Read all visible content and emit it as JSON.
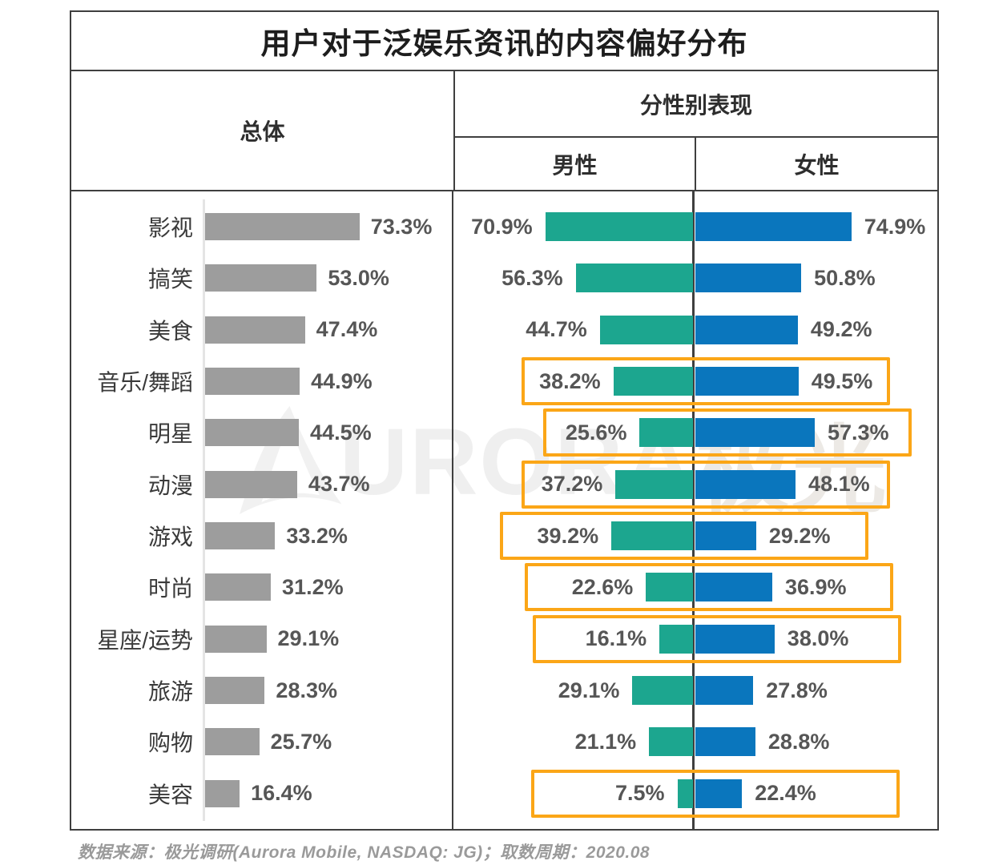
{
  "title": "用户对于泛娱乐资讯的内容偏好分布",
  "columns": {
    "overall": "总体",
    "by_gender": "分性别表现",
    "male": "男性",
    "female": "女性"
  },
  "footer": "数据来源：极光调研(Aurora Mobile, NASDAQ: JG)；取数周期：2020.08",
  "watermark": {
    "logo": "aurora-swoosh-logo",
    "brand_latin": "URORA",
    "brand_cjk": "极光"
  },
  "colors": {
    "overall_bar": "#9d9d9d",
    "male_bar": "#1ca68f",
    "female_bar": "#0a76bd",
    "highlight_box": "#fba617",
    "table_border": "#3f3f3f",
    "value_text": "#565656"
  },
  "chart_data": {
    "type": "bar",
    "orientation": "horizontal",
    "unit": "%",
    "title": "用户对于泛娱乐资讯的内容偏好分布",
    "categories": [
      "影视",
      "搞笑",
      "美食",
      "音乐/舞蹈",
      "明星",
      "动漫",
      "游戏",
      "时尚",
      "星座/运势",
      "旅游",
      "购物",
      "美容"
    ],
    "series": [
      {
        "name": "总体",
        "values": [
          73.3,
          53.0,
          47.4,
          44.9,
          44.5,
          43.7,
          33.2,
          31.2,
          29.1,
          28.3,
          25.7,
          16.4
        ]
      },
      {
        "name": "男性",
        "values": [
          70.9,
          56.3,
          44.7,
          38.2,
          25.6,
          37.2,
          39.2,
          22.6,
          16.1,
          29.1,
          21.1,
          7.5
        ]
      },
      {
        "name": "女性",
        "values": [
          74.9,
          50.8,
          49.2,
          49.5,
          57.3,
          48.1,
          29.2,
          36.9,
          38.0,
          27.8,
          28.8,
          22.4
        ]
      }
    ],
    "highlighted_categories": [
      "音乐/舞蹈",
      "明星",
      "动漫",
      "游戏",
      "时尚",
      "星座/运势",
      "美容"
    ],
    "xlim_overall": [
      0,
      100
    ],
    "xlim_gender": [
      0,
      100
    ],
    "legend_position": "column-headers",
    "grid": false,
    "rows": [
      {
        "label": "影视",
        "overall": 73.3,
        "male": 70.9,
        "female": 74.9,
        "overall_label": "73.3%",
        "male_label": "70.9%",
        "female_label": "74.9%",
        "highlight": false
      },
      {
        "label": "搞笑",
        "overall": 53.0,
        "male": 56.3,
        "female": 50.8,
        "overall_label": "53.0%",
        "male_label": "56.3%",
        "female_label": "50.8%",
        "highlight": false
      },
      {
        "label": "美食",
        "overall": 47.4,
        "male": 44.7,
        "female": 49.2,
        "overall_label": "47.4%",
        "male_label": "44.7%",
        "female_label": "49.2%",
        "highlight": false
      },
      {
        "label": "音乐/舞蹈",
        "overall": 44.9,
        "male": 38.2,
        "female": 49.5,
        "overall_label": "44.9%",
        "male_label": "38.2%",
        "female_label": "49.5%",
        "highlight": true
      },
      {
        "label": "明星",
        "overall": 44.5,
        "male": 25.6,
        "female": 57.3,
        "overall_label": "44.5%",
        "male_label": "25.6%",
        "female_label": "57.3%",
        "highlight": true
      },
      {
        "label": "动漫",
        "overall": 43.7,
        "male": 37.2,
        "female": 48.1,
        "overall_label": "43.7%",
        "male_label": "37.2%",
        "female_label": "48.1%",
        "highlight": true
      },
      {
        "label": "游戏",
        "overall": 33.2,
        "male": 39.2,
        "female": 29.2,
        "overall_label": "33.2%",
        "male_label": "39.2%",
        "female_label": "29.2%",
        "highlight": true
      },
      {
        "label": "时尚",
        "overall": 31.2,
        "male": 22.6,
        "female": 36.9,
        "overall_label": "31.2%",
        "male_label": "22.6%",
        "female_label": "36.9%",
        "highlight": true
      },
      {
        "label": "星座/运势",
        "overall": 29.1,
        "male": 16.1,
        "female": 38.0,
        "overall_label": "29.1%",
        "male_label": "16.1%",
        "female_label": "38.0%",
        "highlight": true
      },
      {
        "label": "旅游",
        "overall": 28.3,
        "male": 29.1,
        "female": 27.8,
        "overall_label": "28.3%",
        "male_label": "29.1%",
        "female_label": "27.8%",
        "highlight": false
      },
      {
        "label": "购物",
        "overall": 25.7,
        "male": 21.1,
        "female": 28.8,
        "overall_label": "25.7%",
        "male_label": "21.1%",
        "female_label": "28.8%",
        "highlight": false
      },
      {
        "label": "美容",
        "overall": 16.4,
        "male": 7.5,
        "female": 22.4,
        "overall_label": "16.4%",
        "male_label": "7.5%",
        "female_label": "22.4%",
        "highlight": true
      }
    ]
  }
}
